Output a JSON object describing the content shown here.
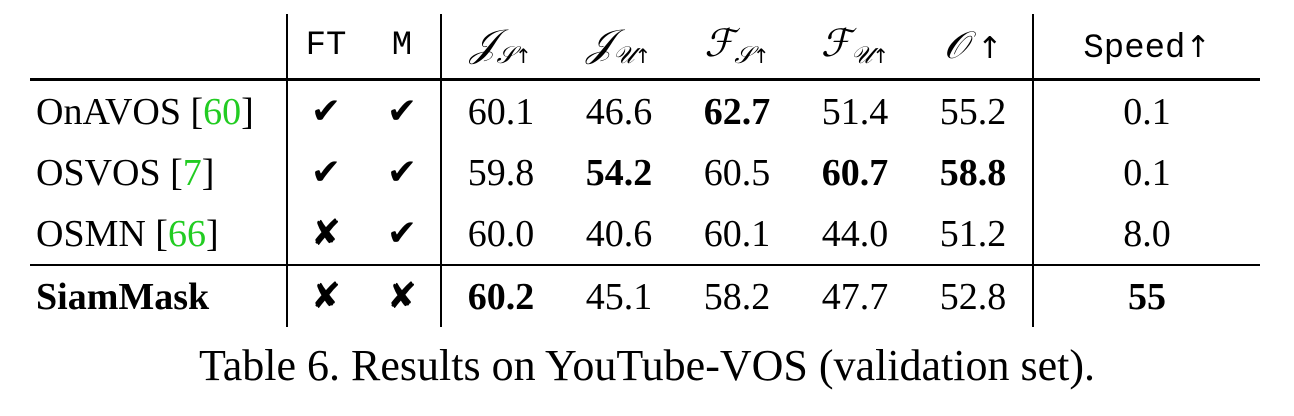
{
  "table": {
    "headers": {
      "ft": "FT",
      "m": "M",
      "js": {
        "base": "𝒥",
        "sub": "𝒮"
      },
      "ju": {
        "base": "𝒥",
        "sub": "𝒰"
      },
      "fs": {
        "base": "ℱ",
        "sub": "𝒮"
      },
      "fu": {
        "base": "ℱ",
        "sub": "𝒰"
      },
      "o": {
        "base": "𝒪"
      },
      "speed": "Speed",
      "arrow": "↑"
    },
    "rows": [
      {
        "method": "OnAVOS [",
        "cite": "60",
        "close": "]",
        "ft": "✔",
        "m": "✔",
        "js": "60.1",
        "ju": "46.6",
        "fs": "62.7",
        "fu": "51.4",
        "o": "55.2",
        "speed": "0.1"
      },
      {
        "method": "OSVOS [",
        "cite": "7",
        "close": "]",
        "ft": "✔",
        "m": "✔",
        "js": "59.8",
        "ju": "54.2",
        "fs": "60.5",
        "fu": "60.7",
        "o": "58.8",
        "speed": "0.1"
      },
      {
        "method": "OSMN [",
        "cite": "66",
        "close": "]",
        "ft": "✘",
        "m": "✔",
        "js": "60.0",
        "ju": "40.6",
        "fs": "60.1",
        "fu": "44.0",
        "o": "51.2",
        "speed": "8.0"
      },
      {
        "method": "SiamMask",
        "cite": "",
        "close": "",
        "ft": "✘",
        "m": "✘",
        "js": "60.2",
        "ju": "45.1",
        "fs": "58.2",
        "fu": "47.7",
        "o": "52.8",
        "speed": "55"
      }
    ]
  },
  "caption": "Table 6. Results on YouTube-VOS (validation set).",
  "colors": {
    "citation": "#22cc22",
    "text": "#000000"
  }
}
